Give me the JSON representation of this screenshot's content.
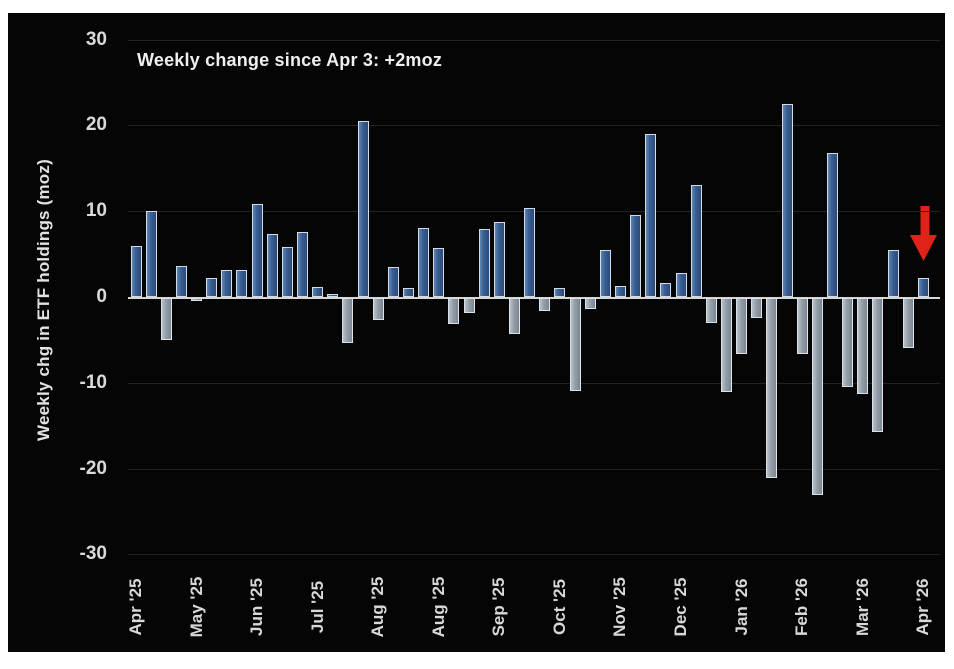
{
  "page": {
    "background": "#ffffff",
    "canvas_background": "#050505"
  },
  "chart_data": {
    "type": "bar",
    "title": "Weekly change since Apr 3:  +2moz",
    "ylabel": "Weekly chg in ETF holdings (moz)",
    "xlabel": "",
    "ylim": [
      -30,
      30
    ],
    "yticks": [
      30,
      20,
      10,
      0,
      -10,
      -20,
      -30
    ],
    "grid": "faint horizontal gridlines on black background",
    "legend": "none",
    "x_unit": "week",
    "values": [
      6.0,
      10.0,
      -4.9,
      3.6,
      -0.3,
      2.2,
      3.2,
      3.1,
      10.8,
      7.4,
      5.8,
      7.6,
      1.2,
      0.3,
      -5.2,
      20.5,
      -2.6,
      3.5,
      1.1,
      8.1,
      5.7,
      -3.0,
      -1.7,
      7.9,
      8.7,
      -4.2,
      10.4,
      -1.5,
      1.0,
      -10.8,
      -1.3,
      5.5,
      1.3,
      9.5,
      19.0,
      1.6,
      2.8,
      13.0,
      -2.9,
      -11.0,
      -6.5,
      -2.3,
      -21.0,
      22.5,
      -6.5,
      -23.0,
      16.8,
      -10.4,
      -11.2,
      -15.6,
      5.5,
      -5.8,
      2.2
    ],
    "x_tick_labels": [
      "Apr '25",
      "May '25",
      "Jun '25",
      "Jul '25",
      "Aug '25",
      "Aug '25",
      "Sep '25",
      "Oct '25",
      "Nov '25",
      "Dec '25",
      "Jan '26",
      "Feb '26",
      "Mar '26",
      "Apr '26"
    ],
    "x_tick_every": 4,
    "colors": {
      "positive_bar": "#3a5f94",
      "negative_bar": "#929da6",
      "bar_border": "#e2e9ef",
      "axis_line": "#d6d6d6",
      "text": "#dadada",
      "gridline": "#222222",
      "arrow": "#e02318"
    },
    "annotations": [
      {
        "type": "arrow-down",
        "target": "last-bar",
        "meaning": "points at most recent week (+2 moz)",
        "color": "#e02318"
      }
    ]
  }
}
